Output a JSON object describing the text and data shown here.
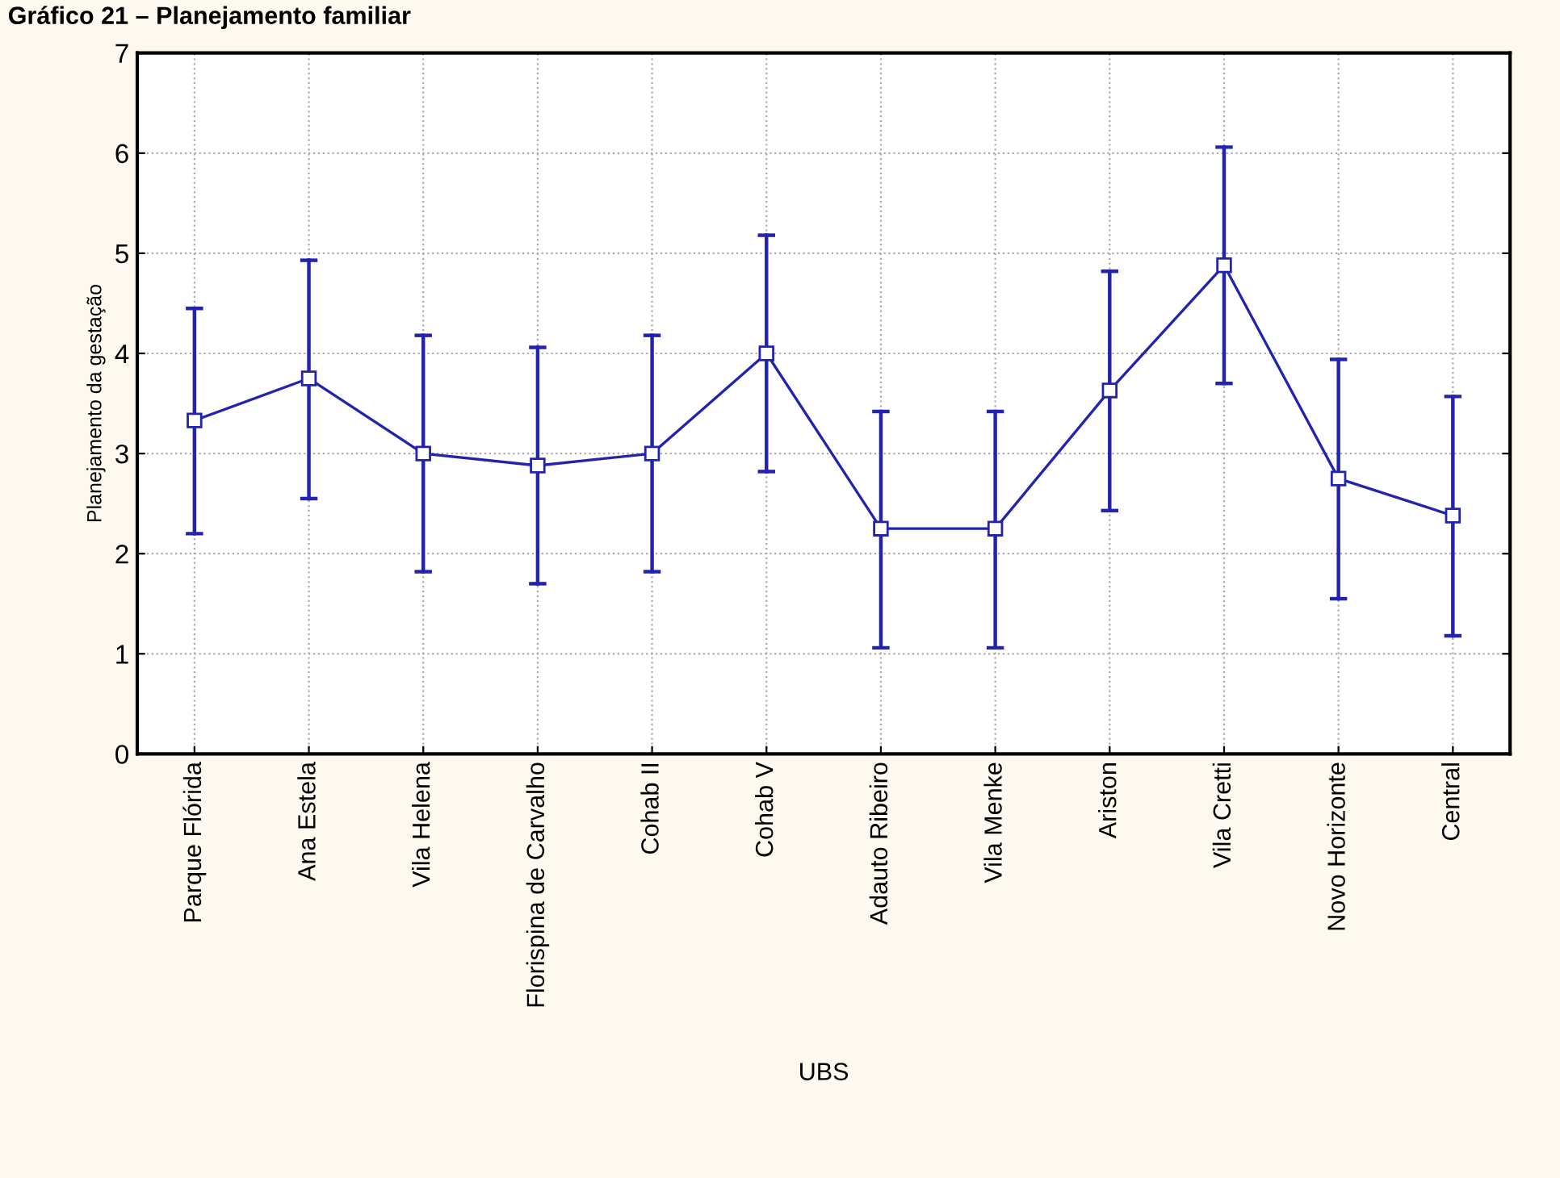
{
  "chart_data": {
    "type": "line",
    "title": "Gráfico 21 – Planejamento familiar",
    "xlabel": "UBS",
    "ylabel": "Planejamento da gestação",
    "categories": [
      "Parque Flórida",
      "Ana Estela",
      "Vila Helena",
      "Florispina de Carvalho",
      "Cohab II",
      "Cohab V",
      "Adauto Ribeiro",
      "Vila Menke",
      "Ariston",
      "Vila Cretti",
      "Novo Horizonte",
      "Central"
    ],
    "series": [
      {
        "color": "#2323b0",
        "values": [
          3.33,
          3.75,
          3.0,
          2.88,
          3.0,
          4.0,
          2.25,
          2.25,
          3.63,
          4.88,
          2.75,
          2.38
        ],
        "errors": [
          [
            2.2,
            4.45
          ],
          [
            2.55,
            4.93
          ],
          [
            1.82,
            4.18
          ],
          [
            1.7,
            4.06
          ],
          [
            1.82,
            4.18
          ],
          [
            2.82,
            5.18
          ],
          [
            1.06,
            3.42
          ],
          [
            1.06,
            3.42
          ],
          [
            2.43,
            4.82
          ],
          [
            3.7,
            6.06
          ],
          [
            1.55,
            3.94
          ],
          [
            1.18,
            3.57
          ]
        ]
      }
    ],
    "ylim": [
      0,
      7
    ],
    "yticks": [
      0,
      1,
      2,
      3,
      4,
      5,
      6,
      7
    ],
    "grid": true,
    "marker": "square",
    "line_style": "solid"
  }
}
